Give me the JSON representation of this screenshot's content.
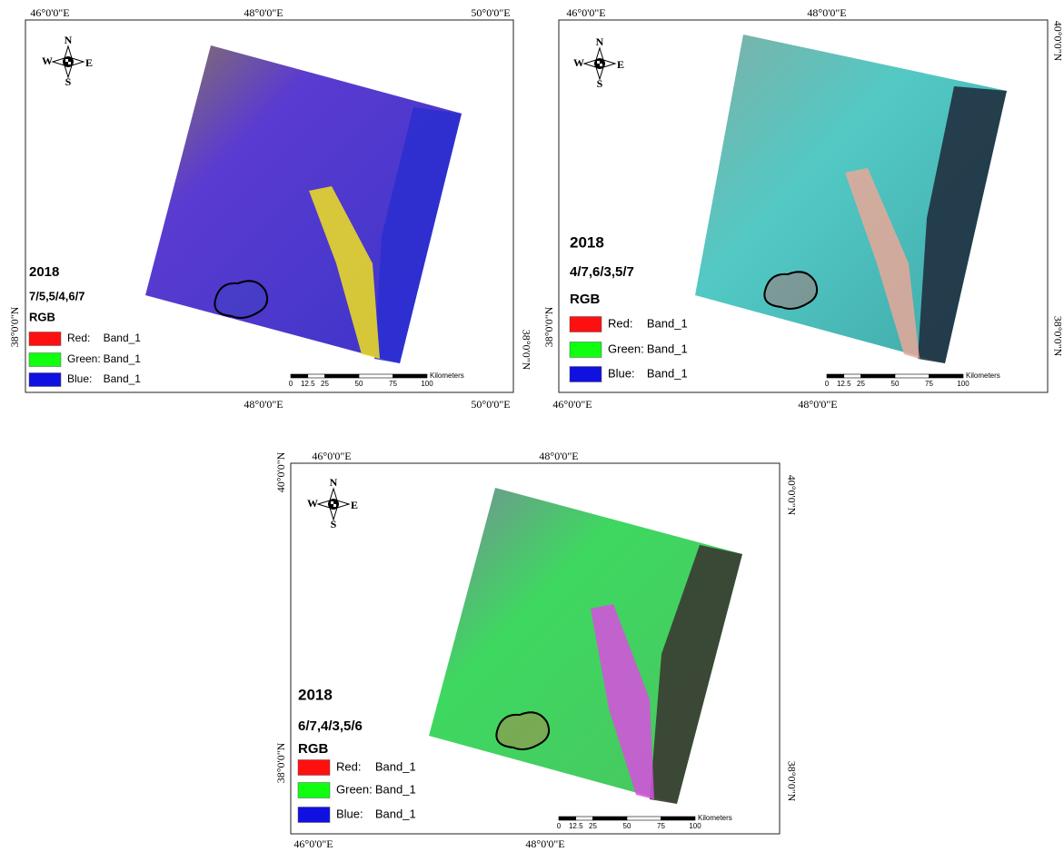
{
  "panels": [
    {
      "top_labels": [
        "46°0'0\"E",
        "48°0'0\"E",
        "50°0'0\"E"
      ],
      "bottom_labels": [
        "48°0'0\"E",
        "50°0'0\"E"
      ],
      "left_labels": [
        "38°0'0\"N"
      ],
      "right_labels": [
        "38°0'0\"N"
      ],
      "compass": {
        "n": "N",
        "s": "S",
        "e": "E",
        "w": "W"
      },
      "year": "2018",
      "ratio": "7/5,5/4,6/7",
      "rgb": "RGB",
      "legend": [
        {
          "channel": "Red:",
          "band": "Band_1"
        },
        {
          "channel": "Green:",
          "band": "Band_1"
        },
        {
          "channel": "Blue:",
          "band": "Band_1"
        }
      ],
      "scale": {
        "ticks": [
          0,
          12.5,
          25,
          50,
          75,
          100
        ],
        "unit": "Kilometers"
      }
    },
    {
      "top_labels": [
        "46°0'0\"E",
        "48°0'0\"E"
      ],
      "bottom_labels": [
        "46°0'0\"E",
        "48°0'0\"E"
      ],
      "left_labels": [
        "38°0'0\"N"
      ],
      "right_labels": [
        "40°0'0\"N",
        "38°0'0\"N"
      ],
      "compass": {
        "n": "N",
        "s": "S",
        "e": "E",
        "w": "W"
      },
      "year": "2018",
      "ratio": "4/7,6/3,5/7",
      "rgb": "RGB",
      "legend": [
        {
          "channel": "Red:",
          "band": "Band_1"
        },
        {
          "channel": "Green:",
          "band": "Band_1"
        },
        {
          "channel": "Blue:",
          "band": "Band_1"
        }
      ],
      "scale": {
        "ticks": [
          0,
          12.5,
          25,
          50,
          75,
          100
        ],
        "unit": "Kilometers"
      }
    },
    {
      "top_labels": [
        "46°0'0\"E",
        "48°0'0\"E"
      ],
      "bottom_labels": [
        "46°0'0\"E",
        "48°0'0\"E"
      ],
      "left_labels": [
        "40°0'0\"N",
        "38°0'0\"N"
      ],
      "right_labels": [
        "40°0'0\"N",
        "38°0'0\"N"
      ],
      "compass": {
        "n": "N",
        "s": "S",
        "e": "E",
        "w": "W"
      },
      "year": "2018",
      "ratio": "6/7,4/3,5/6",
      "rgb": "RGB",
      "legend": [
        {
          "channel": "Red:",
          "band": "Band_1"
        },
        {
          "channel": "Green:",
          "band": "Band_1"
        },
        {
          "channel": "Blue:",
          "band": "Band_1"
        }
      ],
      "scale": {
        "ticks": [
          0,
          12.5,
          25,
          50,
          75,
          100
        ],
        "unit": "Kilometers"
      }
    }
  ]
}
